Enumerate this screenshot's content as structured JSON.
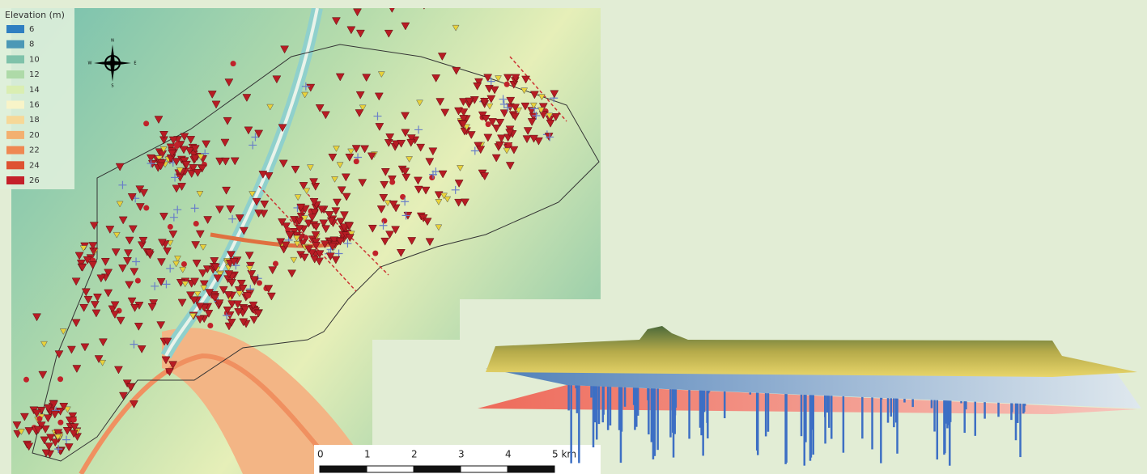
{
  "legend": {
    "title": "Elevation (m)",
    "items": [
      {
        "label": "6",
        "color": "#2f7fc1"
      },
      {
        "label": "8",
        "color": "#4c98b6"
      },
      {
        "label": "10",
        "color": "#7fc2aa"
      },
      {
        "label": "12",
        "color": "#aedaa8"
      },
      {
        "label": "14",
        "color": "#daeeb2"
      },
      {
        "label": "16",
        "color": "#f8f4c8"
      },
      {
        "label": "18",
        "color": "#f6d898"
      },
      {
        "label": "20",
        "color": "#f3b070"
      },
      {
        "label": "22",
        "color": "#ef8852"
      },
      {
        "label": "24",
        "color": "#de5232"
      },
      {
        "label": "26",
        "color": "#c4202a"
      }
    ]
  },
  "compass": {
    "north": "N",
    "south": "S",
    "east": "E",
    "west": "W"
  },
  "scale_bar": {
    "labels": [
      "0",
      "1",
      "2",
      "3",
      "4",
      "5 km"
    ]
  }
}
